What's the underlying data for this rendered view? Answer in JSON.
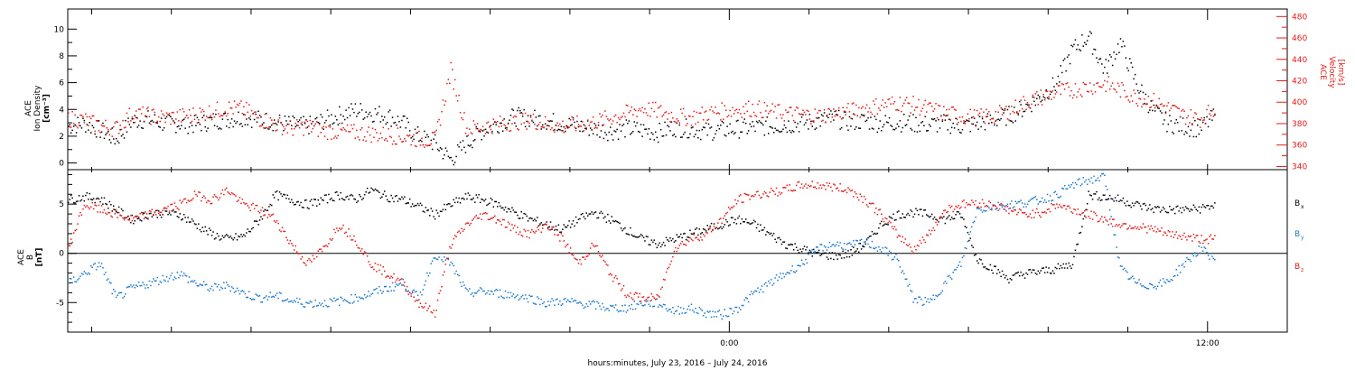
{
  "chart_data": [
    {
      "type": "scatter",
      "panel": "top",
      "ylabel_left": [
        "ACE",
        "Ion Density",
        "[cm⁻³]"
      ],
      "ylabel_right": [
        "ACE",
        "Velocity",
        "[km/s]"
      ],
      "yticks_left": [
        "0",
        "2",
        "4",
        "6",
        "8",
        "10"
      ],
      "yticks_right": [
        "340",
        "360",
        "380",
        "400",
        "420",
        "440",
        "460",
        "480"
      ],
      "ylim_left": [
        -0.5,
        11.5
      ],
      "ylim_right": [
        337,
        487
      ],
      "x_hours_range": [
        -16.6,
        14.0
      ],
      "series": [
        {
          "color": "#000000",
          "axis": "left",
          "x_hours": [
            -16.6,
            -16.2,
            -15.8,
            -15.4,
            -15.0,
            -14.6,
            -14.2,
            -13.8,
            -13.4,
            -13.0,
            -12.6,
            -12.2,
            -11.8,
            -11.4,
            -11.0,
            -10.6,
            -10.2,
            -9.8,
            -9.4,
            -9.0,
            -8.6,
            -8.2,
            -7.8,
            -7.4,
            -7.0,
            -6.6,
            -6.2,
            -5.8,
            -5.4,
            -5.0,
            -4.6,
            -4.2,
            -3.8,
            -3.4,
            -3.0,
            -2.6,
            -2.2,
            -1.8,
            -1.4,
            -1.0,
            -0.6,
            -0.2,
            0.2,
            0.6,
            1.0,
            1.4,
            1.8,
            2.2,
            2.6,
            3.0,
            3.4,
            3.8,
            4.2,
            4.6,
            5.0,
            5.4,
            5.8,
            6.2,
            6.6,
            7.0,
            7.4,
            7.8,
            8.2,
            8.6,
            9.0,
            9.4,
            9.8,
            10.2,
            10.6,
            11.0,
            11.4,
            11.8,
            12.2
          ],
          "values": [
            2.8,
            3.0,
            2.5,
            1.8,
            3.2,
            3.3,
            3.0,
            3.0,
            2.9,
            3.2,
            3.3,
            3.5,
            3.3,
            3.1,
            2.9,
            2.8,
            3.2,
            3.6,
            4.0,
            3.8,
            3.6,
            3.0,
            2.0,
            1.5,
            0.3,
            1.5,
            2.5,
            3.0,
            3.5,
            3.4,
            3.2,
            3.0,
            2.8,
            2.6,
            2.4,
            2.6,
            2.5,
            2.3,
            2.7,
            2.6,
            2.4,
            2.5,
            2.6,
            2.7,
            2.8,
            2.9,
            3.0,
            3.2,
            3.4,
            3.1,
            3.2,
            3.0,
            3.1,
            3.0,
            2.9,
            3.0,
            2.8,
            3.0,
            3.2,
            3.6,
            4.2,
            5.0,
            6.0,
            8.5,
            9.5,
            7.0,
            9.0,
            6.0,
            4.0,
            3.0,
            2.8,
            2.6,
            3.6
          ],
          "values_note": ""
        },
        {
          "color": "#e31a1c",
          "axis": "right",
          "x_hours": [
            -16.6,
            -16.2,
            -15.8,
            -15.4,
            -15.0,
            -14.6,
            -14.2,
            -13.8,
            -13.4,
            -13.0,
            -12.6,
            -12.2,
            -11.8,
            -11.4,
            -11.0,
            -10.6,
            -10.2,
            -9.8,
            -9.4,
            -9.0,
            -8.6,
            -8.2,
            -7.8,
            -7.4,
            -7.0,
            -6.6,
            -6.2,
            -5.8,
            -5.4,
            -5.0,
            -4.6,
            -4.2,
            -3.8,
            -3.4,
            -3.0,
            -2.6,
            -2.2,
            -1.8,
            -1.4,
            -1.0,
            -0.6,
            -0.2,
            0.2,
            0.6,
            1.0,
            1.4,
            1.8,
            2.2,
            2.6,
            3.0,
            3.4,
            3.8,
            4.2,
            4.6,
            5.0,
            5.4,
            5.8,
            6.2,
            6.6,
            7.0,
            7.4,
            7.8,
            8.2,
            8.6,
            9.0,
            9.4,
            9.8,
            10.2,
            10.6,
            11.0,
            11.4,
            11.8,
            12.2
          ],
          "values": [
            385,
            384,
            378,
            376,
            390,
            388,
            386,
            387,
            389,
            392,
            395,
            394,
            385,
            380,
            376,
            378,
            374,
            373,
            372,
            371,
            370,
            368,
            366,
            365,
            430,
            375,
            378,
            380,
            382,
            384,
            380,
            378,
            380,
            382,
            386,
            390,
            395,
            392,
            388,
            386,
            390,
            392,
            394,
            395,
            392,
            390,
            389,
            388,
            390,
            392,
            395,
            398,
            400,
            398,
            394,
            390,
            388,
            386,
            388,
            392,
            400,
            405,
            410,
            412,
            415,
            418,
            412,
            405,
            402,
            395,
            388,
            385,
            396
          ],
          "values_note": ""
        }
      ]
    },
    {
      "type": "scatter",
      "panel": "bottom",
      "ylabel_left": [
        "ACE",
        "B",
        "[nT]"
      ],
      "yticks_left": [
        "-5",
        "0",
        "5"
      ],
      "ylim_left": [
        -8,
        8.5
      ],
      "x_hours_range": [
        -16.6,
        14.0
      ],
      "legend": [
        {
          "label": "B",
          "sub": "x",
          "color": "#000000"
        },
        {
          "label": "B",
          "sub": "y",
          "color": "#1f78c8"
        },
        {
          "label": "B",
          "sub": "z",
          "color": "#e31a1c"
        }
      ],
      "series": [
        {
          "name": "Bx",
          "color": "#000000",
          "x_hours": [
            -16.6,
            -16.2,
            -15.8,
            -15.4,
            -15.0,
            -14.6,
            -14.2,
            -13.8,
            -13.4,
            -13.0,
            -12.6,
            -12.2,
            -11.8,
            -11.4,
            -11.0,
            -10.6,
            -10.2,
            -9.8,
            -9.4,
            -9.0,
            -8.6,
            -8.2,
            -7.8,
            -7.4,
            -7.0,
            -6.6,
            -6.2,
            -5.8,
            -5.4,
            -5.0,
            -4.6,
            -4.2,
            -3.8,
            -3.4,
            -3.0,
            -2.6,
            -2.2,
            -1.8,
            -1.4,
            -1.0,
            -0.6,
            -0.2,
            0.2,
            0.6,
            1.0,
            1.4,
            1.8,
            2.2,
            2.6,
            3.0,
            3.4,
            3.8,
            4.2,
            4.6,
            5.0,
            5.4,
            5.8,
            6.2,
            6.6,
            7.0,
            7.4,
            7.8,
            8.2,
            8.6,
            9.0,
            9.4,
            9.8,
            10.2,
            10.6,
            11.0,
            11.4,
            11.8,
            12.2
          ],
          "values": [
            5.5,
            5.8,
            5.6,
            4.5,
            3.5,
            4.0,
            4.2,
            4.0,
            3.0,
            2.0,
            1.5,
            1.8,
            3.5,
            6.0,
            5.5,
            5.0,
            5.5,
            6.0,
            5.5,
            6.5,
            5.8,
            5.5,
            4.8,
            4.0,
            5.0,
            5.8,
            5.5,
            5.0,
            4.2,
            3.5,
            3.0,
            2.5,
            3.5,
            4.2,
            3.5,
            2.5,
            1.5,
            1.0,
            1.5,
            2.0,
            2.5,
            3.0,
            3.5,
            3.0,
            2.0,
            1.0,
            0.5,
            0.0,
            -0.2,
            0.0,
            1.0,
            3.0,
            4.0,
            4.2,
            4.0,
            3.5,
            4.0,
            -0.5,
            -1.5,
            -2.5,
            -2.0,
            -1.8,
            -1.5,
            -1.0,
            6.0,
            5.8,
            5.5,
            5.0,
            4.6,
            4.5,
            4.5,
            4.6,
            5.0
          ],
          "values_note": ""
        },
        {
          "name": "By",
          "color": "#1f78c8",
          "x_hours": [
            -16.6,
            -16.2,
            -15.8,
            -15.4,
            -15.0,
            -14.6,
            -14.2,
            -13.8,
            -13.4,
            -13.0,
            -12.6,
            -12.2,
            -11.8,
            -11.4,
            -11.0,
            -10.6,
            -10.2,
            -9.8,
            -9.4,
            -9.0,
            -8.6,
            -8.2,
            -7.8,
            -7.4,
            -7.0,
            -6.6,
            -6.2,
            -5.8,
            -5.4,
            -5.0,
            -4.6,
            -4.2,
            -3.8,
            -3.4,
            -3.0,
            -2.6,
            -2.2,
            -1.8,
            -1.4,
            -1.0,
            -0.6,
            -0.2,
            0.2,
            0.6,
            1.0,
            1.4,
            1.8,
            2.2,
            2.6,
            3.0,
            3.4,
            3.8,
            4.2,
            4.6,
            5.0,
            5.4,
            5.8,
            6.2,
            6.6,
            7.0,
            7.4,
            7.8,
            8.2,
            8.6,
            9.0,
            9.4,
            9.8,
            10.2,
            10.6,
            11.0,
            11.4,
            11.8,
            12.2
          ],
          "values": [
            -3.0,
            -2.0,
            -1.0,
            -4.5,
            -3.5,
            -3.0,
            -2.5,
            -2.0,
            -3.0,
            -3.5,
            -3.2,
            -4.0,
            -4.5,
            -4.2,
            -4.8,
            -5.0,
            -5.0,
            -4.8,
            -4.5,
            -4.0,
            -3.5,
            -3.0,
            -4.5,
            0.0,
            -1.0,
            -4.0,
            -3.8,
            -4.0,
            -4.2,
            -4.5,
            -5.0,
            -4.8,
            -5.0,
            -5.2,
            -5.5,
            -5.5,
            -5.0,
            -5.0,
            -5.8,
            -5.5,
            -6.0,
            -6.2,
            -5.5,
            -4.0,
            -3.0,
            -2.0,
            -1.0,
            0.5,
            1.0,
            0.8,
            1.2,
            0.5,
            -0.5,
            -4.5,
            -5.0,
            -3.0,
            -1.0,
            4.5,
            4.8,
            5.0,
            5.2,
            5.5,
            6.0,
            7.0,
            7.5,
            7.8,
            -1.5,
            -3.0,
            -3.2,
            -2.8,
            -1.0,
            0.5,
            -0.5
          ],
          "values_note": ""
        },
        {
          "name": "Bz",
          "color": "#e31a1c",
          "x_hours": [
            -16.6,
            -16.2,
            -15.8,
            -15.4,
            -15.0,
            -14.6,
            -14.2,
            -13.8,
            -13.4,
            -13.0,
            -12.6,
            -12.2,
            -11.8,
            -11.4,
            -11.0,
            -10.6,
            -10.2,
            -9.8,
            -9.4,
            -9.0,
            -8.6,
            -8.2,
            -7.8,
            -7.4,
            -7.0,
            -6.6,
            -6.2,
            -5.8,
            -5.4,
            -5.0,
            -4.6,
            -4.2,
            -3.8,
            -3.4,
            -3.0,
            -2.6,
            -2.2,
            -1.8,
            -1.4,
            -1.0,
            -0.6,
            -0.2,
            0.2,
            0.6,
            1.0,
            1.4,
            1.8,
            2.2,
            2.6,
            3.0,
            3.4,
            3.8,
            4.2,
            4.6,
            5.0,
            5.4,
            5.8,
            6.2,
            6.6,
            7.0,
            7.4,
            7.8,
            8.2,
            8.6,
            9.0,
            9.4,
            9.8,
            10.2,
            10.6,
            11.0,
            11.4,
            11.8,
            12.2
          ],
          "values": [
            0.5,
            5.0,
            4.5,
            4.0,
            3.5,
            4.0,
            4.5,
            5.0,
            6.0,
            5.5,
            6.5,
            5.0,
            4.5,
            3.5,
            1.0,
            -1.0,
            0.5,
            3.0,
            1.5,
            -1.0,
            -2.0,
            -3.0,
            -5.0,
            -6.0,
            1.0,
            3.0,
            4.0,
            3.5,
            2.5,
            2.0,
            3.0,
            1.5,
            -1.0,
            1.0,
            -2.0,
            -4.0,
            -4.5,
            -4.5,
            0.5,
            1.5,
            2.0,
            3.5,
            5.5,
            6.0,
            6.2,
            6.5,
            7.0,
            7.0,
            6.8,
            6.5,
            5.5,
            4.0,
            2.0,
            0.5,
            2.0,
            4.5,
            5.0,
            5.2,
            5.0,
            4.5,
            4.0,
            4.2,
            5.0,
            4.5,
            4.0,
            3.5,
            3.0,
            2.8,
            2.5,
            2.0,
            1.8,
            1.5,
            1.5
          ],
          "values_note": ""
        }
      ]
    }
  ],
  "x_axis": {
    "xlabel": "hours:minutes, July 23, 2016 – July 24, 2016",
    "tick_labels": [
      {
        "label": "0:00",
        "hour": 0
      },
      {
        "label": "12:00",
        "hour": 12
      }
    ],
    "minor_tick_step_hours": 2
  },
  "colors": {
    "black": "#000000",
    "red": "#e31a1c",
    "blue": "#1f78c8"
  }
}
